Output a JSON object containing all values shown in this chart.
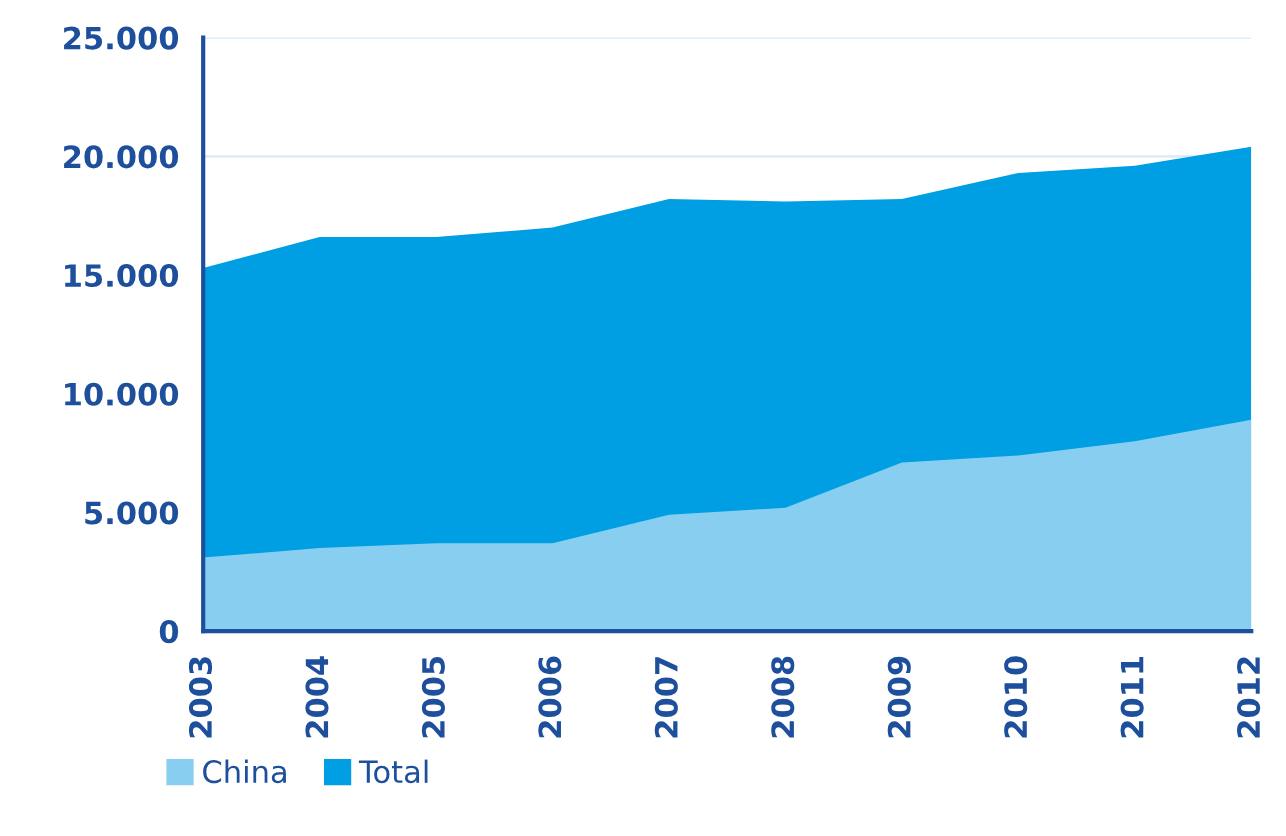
{
  "chart_data": {
    "type": "area",
    "categories": [
      "2003",
      "2004",
      "2005",
      "2006",
      "2007",
      "2008",
      "2009",
      "2010",
      "2011",
      "2012"
    ],
    "series": [
      {
        "name": "Total",
        "color": "#009fe3",
        "values": [
          15300,
          16600,
          16600,
          17000,
          18200,
          18100,
          18200,
          19300,
          19600,
          20400
        ]
      },
      {
        "name": "China",
        "color": "#87cef0",
        "values": [
          3100,
          3500,
          3700,
          3700,
          4900,
          5200,
          7100,
          7400,
          8000,
          8900
        ]
      }
    ],
    "ylim": [
      0,
      25000
    ],
    "yticks": [
      {
        "value": 0,
        "label": "0"
      },
      {
        "value": 5000,
        "label": "5.000"
      },
      {
        "value": 10000,
        "label": "10.000"
      },
      {
        "value": 15000,
        "label": "15.000"
      },
      {
        "value": 20000,
        "label": "20.000"
      },
      {
        "value": 25000,
        "label": "25.000"
      }
    ],
    "grid": "y",
    "legend": "bottom left"
  }
}
